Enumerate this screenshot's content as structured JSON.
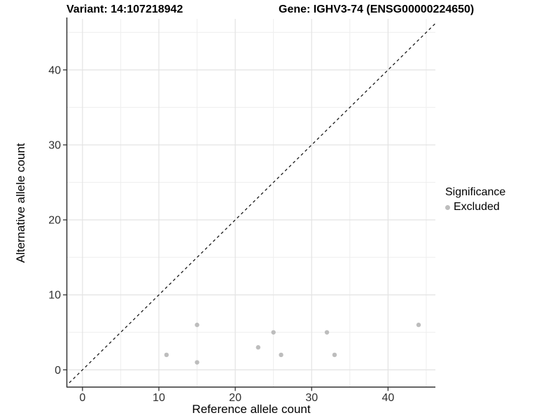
{
  "titles": {
    "variant": "Variant: 14:107218942",
    "gene": "Gene: IGHV3-74 (ENSG00000224650)"
  },
  "chart_data": {
    "type": "scatter",
    "title_left": "Variant: 14:107218942",
    "title_right": "Gene: IGHV3-74 (ENSG00000224650)",
    "xlabel": "Reference allele count",
    "ylabel": "Alternative allele count",
    "xlim": [
      -2.0,
      46.2
    ],
    "ylim": [
      -2.3,
      46.8
    ],
    "x_ticks": [
      0,
      10,
      20,
      30,
      40
    ],
    "y_ticks": [
      0,
      10,
      20,
      30,
      40
    ],
    "x_minor_gridlines": [
      5,
      15,
      25,
      35,
      45
    ],
    "y_minor_gridlines": [
      5,
      15,
      25,
      35,
      45
    ],
    "grid": true,
    "identity_line": {
      "type": "dashed",
      "equation": "y = x"
    },
    "series": [
      {
        "name": "Excluded",
        "color": "#bdbdbd",
        "points": [
          [
            11,
            2
          ],
          [
            15,
            1
          ],
          [
            15,
            6
          ],
          [
            23,
            3
          ],
          [
            25,
            5
          ],
          [
            26,
            2
          ],
          [
            32,
            5
          ],
          [
            33,
            2
          ],
          [
            44,
            6
          ]
        ]
      }
    ],
    "legend": {
      "position": "right",
      "title": "Significance",
      "items": [
        {
          "label": "Excluded",
          "color": "#bdbdbd"
        }
      ]
    }
  },
  "style": {
    "background": "#ffffff",
    "grid_major_color": "#e3e3e3",
    "grid_minor_color": "#eeeeee",
    "axis_line_color": "#333333",
    "tick_label_color": "#303030",
    "identity_line_color": "#1a1a1a",
    "point_color": "#bdbdbd",
    "point_radius": 3.2
  }
}
